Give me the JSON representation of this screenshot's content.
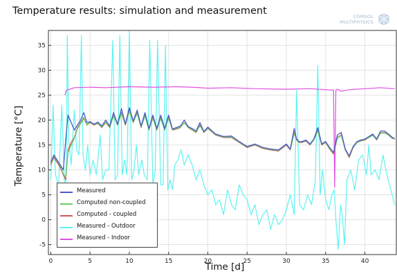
{
  "chart_data": {
    "type": "line",
    "title": "Temperature results: simulation and measurement",
    "xlabel": "Time [d]",
    "ylabel": "Temperature [°C]",
    "xlim": [
      -0.3,
      44
    ],
    "ylim": [
      -7,
      38
    ],
    "xticks": [
      0,
      5,
      10,
      15,
      20,
      25,
      30,
      35,
      40
    ],
    "yticks": [
      -5,
      0,
      5,
      10,
      15,
      20,
      25,
      30,
      35
    ],
    "grid": true,
    "legend_position": "bottom-left",
    "series": [
      {
        "name": "Measured Outdoor",
        "legend_label": "Measured - Outdoor",
        "color": "#5ef2f2",
        "width": 1.2,
        "x": [
          0,
          0.3,
          0.6,
          1.0,
          1.4,
          1.8,
          2.0,
          2.1,
          2.3,
          2.6,
          3.0,
          3.3,
          3.6,
          3.9,
          4.1,
          4.4,
          4.7,
          5.0,
          5.4,
          5.8,
          6.3,
          6.6,
          7.0,
          7.4,
          7.9,
          8.2,
          8.5,
          8.8,
          9.1,
          9.4,
          9.7,
          10.0,
          10.3,
          10.6,
          10.9,
          11.2,
          11.6,
          11.9,
          12.3,
          12.6,
          13.0,
          13.3,
          13.6,
          14.0,
          14.3,
          14.6,
          14.9,
          15.2,
          15.5,
          15.8,
          16.2,
          16.6,
          17.0,
          17.5,
          18.0,
          18.5,
          19.0,
          19.5,
          20.0,
          20.5,
          21.0,
          21.5,
          22.0,
          22.5,
          23.0,
          23.5,
          24.0,
          24.5,
          25.0,
          25.5,
          26.0,
          26.5,
          27.0,
          27.5,
          28.0,
          28.5,
          29.0,
          29.5,
          30.0,
          30.5,
          31.0,
          31.3,
          31.7,
          32.2,
          32.7,
          33.2,
          33.7,
          34.0,
          34.3,
          34.6,
          35.0,
          35.4,
          35.8,
          36.1,
          36.3,
          36.6,
          36.9,
          37.1,
          37.4,
          37.7,
          38.2,
          38.7,
          39.2,
          39.7,
          40.2,
          40.5,
          40.8,
          41.3,
          41.8,
          42.3,
          42.8,
          43.3,
          43.8
        ],
        "y": [
          8.0,
          23.0,
          9.0,
          7.0,
          23.0,
          5.0,
          12.0,
          37.0,
          16.0,
          11.0,
          22.0,
          14.0,
          13.0,
          37.0,
          13.0,
          10.0,
          15.0,
          9.0,
          12.0,
          9.0,
          17.0,
          8.0,
          10.0,
          10.0,
          36.0,
          8.0,
          9.0,
          37.0,
          9.0,
          12.0,
          9.0,
          38.0,
          8.0,
          10.0,
          15.0,
          9.0,
          12.0,
          9.0,
          8.0,
          36.0,
          7.0,
          10.0,
          36.0,
          7.0,
          7.0,
          35.0,
          6.0,
          8.0,
          6.0,
          11.0,
          12.0,
          14.0,
          11.0,
          13.0,
          11.0,
          8.0,
          10.0,
          7.0,
          5.0,
          6.0,
          3.0,
          4.0,
          1.0,
          6.0,
          3.0,
          2.0,
          7.0,
          5.0,
          4.0,
          1.0,
          3.0,
          -1.0,
          1.0,
          2.0,
          -2.0,
          1.0,
          -1.0,
          0.0,
          2.0,
          5.0,
          1.0,
          26.0,
          3.0,
          2.0,
          5.0,
          3.0,
          8.0,
          31.0,
          5.0,
          10.0,
          4.0,
          2.0,
          5.0,
          6.0,
          0.0,
          -6.0,
          3.0,
          1.0,
          -5.0,
          8.0,
          10.0,
          6.0,
          12.0,
          13.0,
          9.0,
          15.0,
          9.0,
          10.0,
          8.0,
          13.0,
          9.0,
          6.0,
          3.0
        ]
      },
      {
        "name": "Measured Indoor",
        "legend_label": "Measured - Indoor",
        "color": "#e04ee0",
        "width": 1.2,
        "x": [
          1.8,
          2.0,
          3.0,
          5.0,
          7.0,
          10.0,
          13.0,
          16.0,
          18.0,
          20.0,
          23.0,
          26.0,
          30.0,
          33.0,
          35.0,
          36.0,
          36.15,
          36.3,
          36.5,
          37.0,
          38.0,
          40.0,
          42.0,
          43.8
        ],
        "y": [
          25.0,
          26.0,
          26.5,
          26.6,
          26.5,
          26.7,
          26.6,
          26.7,
          26.6,
          26.4,
          26.5,
          26.3,
          26.2,
          26.3,
          26.1,
          26.0,
          6.5,
          26.0,
          26.2,
          25.8,
          26.1,
          26.3,
          26.5,
          26.3
        ],
        "break_after_index": null
      },
      {
        "name": "Computed coupled",
        "legend_label": "Computed - coupled",
        "color": "#d05858",
        "width": 1.3,
        "x": [
          0,
          0.4,
          0.8,
          1.2,
          1.6,
          1.9,
          2.2,
          2.6,
          3.0,
          3.4,
          3.8,
          4.2,
          4.6,
          5.0,
          5.5,
          6.0,
          6.5,
          7.0,
          7.5,
          8.0,
          8.5,
          9.0,
          9.5,
          10.0,
          10.5,
          11.0,
          11.5,
          12.0,
          12.5,
          13.0,
          13.5,
          14.0,
          14.5,
          15.0,
          15.5,
          16.0,
          16.5,
          17.0,
          17.5,
          18.0,
          18.5,
          19.0,
          19.5,
          20.0,
          21.0,
          22.0,
          23.0,
          24.0,
          25.0,
          26.0,
          27.0,
          28.0,
          29.0,
          30.0,
          30.5,
          31.0,
          31.3,
          31.6,
          32.0,
          32.5,
          33.0,
          33.5,
          34.0,
          34.5,
          35.0,
          35.5,
          36.0,
          36.5,
          37.0,
          37.5,
          38.0,
          38.5,
          39.0,
          39.5,
          40.0,
          40.5,
          41.0,
          41.5,
          42.0,
          42.5,
          43.0,
          43.5,
          43.8
        ],
        "y": [
          11.0,
          12.5,
          11.5,
          10.5,
          9.0,
          8.0,
          14.0,
          15.5,
          16.5,
          18.5,
          19.5,
          20.5,
          19.0,
          19.5,
          19.0,
          19.3,
          18.5,
          19.5,
          18.5,
          21.0,
          19.0,
          21.5,
          19.0,
          22.0,
          19.5,
          21.5,
          18.5,
          21.0,
          18.0,
          20.5,
          18.0,
          20.5,
          18.0,
          20.5,
          18.0,
          18.2,
          18.5,
          19.5,
          18.5,
          18.0,
          17.5,
          19.0,
          17.5,
          18.3,
          17.0,
          16.5,
          16.5,
          15.5,
          14.5,
          15.0,
          14.3,
          14.0,
          13.8,
          15.0,
          14.0,
          17.5,
          16.0,
          15.5,
          15.5,
          15.8,
          15.0,
          16.0,
          18.0,
          15.0,
          15.5,
          14.2,
          13.2,
          16.5,
          17.0,
          14.0,
          12.5,
          14.5,
          15.5,
          15.8,
          16.0,
          16.5,
          17.0,
          16.0,
          17.5,
          17.5,
          17.0,
          16.3,
          16.2
        ]
      },
      {
        "name": "Computed non-coupled",
        "legend_label": "Computed non-coupled",
        "color": "#66cc66",
        "width": 1.3,
        "x": [
          0,
          0.4,
          0.8,
          1.2,
          1.6,
          1.9,
          2.2,
          2.6,
          3.0,
          3.4,
          3.8,
          4.2,
          4.6,
          5.0,
          5.5,
          6.0,
          6.5,
          7.0,
          7.5,
          8.0,
          8.5,
          9.0,
          9.5,
          10.0,
          10.5,
          11.0,
          11.5,
          12.0,
          12.5,
          13.0,
          13.5,
          14.0,
          14.5,
          15.0,
          15.5,
          16.0,
          16.5,
          17.0,
          17.5,
          18.0,
          18.5,
          19.0,
          19.5,
          20.0,
          21.0,
          22.0,
          23.0,
          24.0,
          25.0,
          26.0,
          27.0,
          28.0,
          29.0,
          30.0,
          30.5,
          31.0,
          31.3,
          31.6,
          32.0,
          32.5,
          33.0,
          33.5,
          34.0,
          34.5,
          35.0,
          35.5,
          36.0,
          36.5,
          37.0,
          37.5,
          38.0,
          38.5,
          39.0,
          39.5,
          40.0,
          40.5,
          41.0,
          41.5,
          42.0,
          42.5,
          43.0,
          43.5,
          43.8
        ],
        "y": [
          11.2,
          12.8,
          11.8,
          10.8,
          9.2,
          8.5,
          13.5,
          15.0,
          16.3,
          18.3,
          19.3,
          20.3,
          19.1,
          19.6,
          19.1,
          19.4,
          18.6,
          19.6,
          18.6,
          20.8,
          19.1,
          21.3,
          19.1,
          21.8,
          19.6,
          21.3,
          18.6,
          20.8,
          18.1,
          20.3,
          18.1,
          20.3,
          18.1,
          20.3,
          18.1,
          18.3,
          18.6,
          19.4,
          18.6,
          18.1,
          17.6,
          18.8,
          17.6,
          18.4,
          17.1,
          16.6,
          16.6,
          15.6,
          14.6,
          15.1,
          14.4,
          14.1,
          13.9,
          15.1,
          14.1,
          17.3,
          16.0,
          15.6,
          15.6,
          15.9,
          15.1,
          16.0,
          17.8,
          15.1,
          15.6,
          14.3,
          13.4,
          16.4,
          16.9,
          14.1,
          12.7,
          14.6,
          15.5,
          15.9,
          16.1,
          16.5,
          16.9,
          16.1,
          17.4,
          17.4,
          17.0,
          16.4,
          16.2
        ]
      },
      {
        "name": "Measured",
        "legend_label": "Measured",
        "color": "#4a58c8",
        "width": 1.3,
        "x": [
          0,
          0.4,
          0.8,
          1.2,
          1.6,
          1.9,
          2.2,
          2.6,
          3.0,
          3.4,
          3.8,
          4.2,
          4.6,
          5.0,
          5.5,
          6.0,
          6.5,
          7.0,
          7.5,
          8.0,
          8.5,
          9.0,
          9.5,
          10.0,
          10.5,
          11.0,
          11.5,
          12.0,
          12.5,
          13.0,
          13.5,
          14.0,
          14.5,
          15.0,
          15.5,
          16.0,
          16.5,
          17.0,
          17.5,
          18.0,
          18.5,
          19.0,
          19.5,
          20.0,
          21.0,
          22.0,
          23.0,
          24.0,
          25.0,
          26.0,
          27.0,
          28.0,
          29.0,
          30.0,
          30.5,
          31.0,
          31.3,
          31.6,
          32.0,
          32.5,
          33.0,
          33.5,
          34.0,
          34.5,
          35.0,
          35.5,
          36.0,
          36.5,
          37.0,
          37.5,
          38.0,
          38.5,
          39.0,
          39.5,
          40.0,
          40.5,
          41.0,
          41.5,
          42.0,
          42.5,
          43.0,
          43.5,
          43.8
        ],
        "y": [
          11.5,
          13.0,
          12.0,
          11.0,
          10.0,
          16.0,
          21.0,
          19.5,
          18.0,
          19.0,
          20.0,
          21.5,
          19.5,
          19.7,
          19.2,
          19.6,
          18.8,
          20.0,
          18.8,
          21.5,
          19.2,
          22.3,
          19.2,
          22.5,
          19.8,
          22.0,
          18.8,
          21.5,
          18.3,
          21.0,
          18.3,
          21.0,
          18.3,
          21.0,
          18.2,
          18.5,
          18.8,
          20.0,
          18.7,
          18.3,
          17.8,
          19.5,
          17.7,
          18.6,
          17.2,
          16.7,
          16.8,
          15.7,
          14.7,
          15.2,
          14.5,
          14.2,
          14.0,
          15.2,
          14.2,
          18.3,
          16.2,
          15.7,
          15.7,
          16.0,
          15.2,
          16.2,
          18.5,
          15.2,
          15.7,
          14.5,
          13.5,
          17.0,
          17.5,
          14.2,
          12.8,
          14.7,
          15.7,
          16.0,
          16.2,
          16.7,
          17.2,
          16.2,
          17.8,
          17.8,
          17.2,
          16.5,
          16.3
        ]
      }
    ]
  },
  "legend": {
    "items": [
      {
        "label": "Measured",
        "color": "#4a58c8"
      },
      {
        "label": "Computed non-coupled",
        "color": "#66cc66"
      },
      {
        "label": "Computed - coupled",
        "color": "#d05858"
      },
      {
        "label": "Measured - Outdoor",
        "color": "#5ef2f2"
      },
      {
        "label": "Measured - Indoor",
        "color": "#e04ee0"
      }
    ]
  },
  "logo": {
    "line1": "COMSOL",
    "line2": "MULTIPHYSICS",
    "icon": "comsol-logo-icon"
  }
}
